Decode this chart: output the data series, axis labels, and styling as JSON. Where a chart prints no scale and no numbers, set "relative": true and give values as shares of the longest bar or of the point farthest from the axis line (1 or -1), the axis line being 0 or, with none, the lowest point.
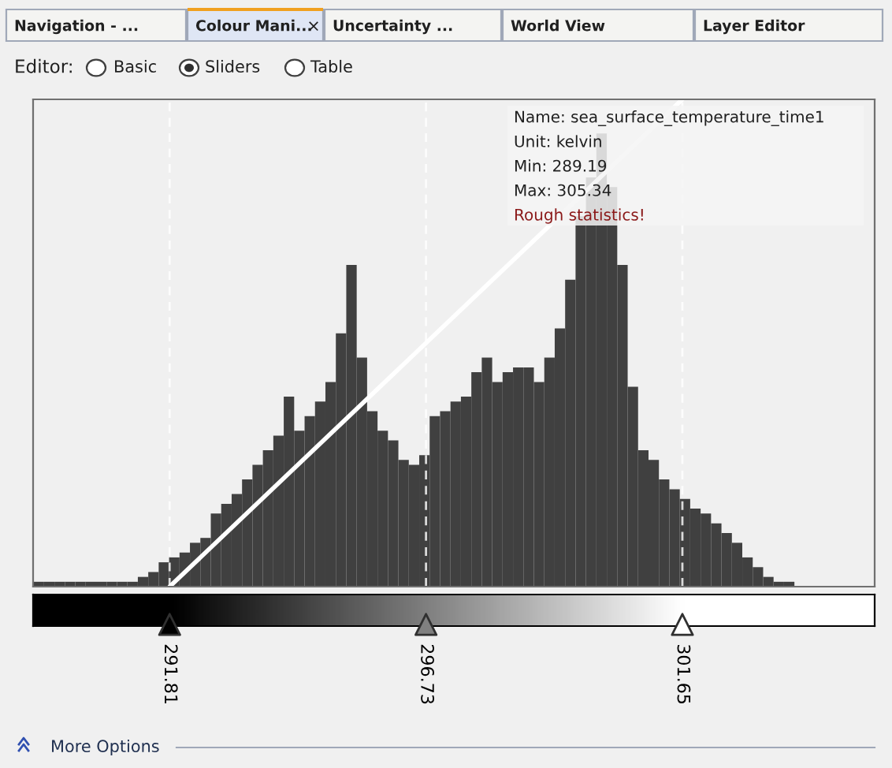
{
  "chart_data": {
    "type": "histogram",
    "relative": true,
    "bins": [
      289.2,
      289.4,
      289.6,
      289.8,
      290.0,
      290.2,
      290.4,
      290.6,
      290.8,
      291.0,
      291.2,
      291.4,
      291.6,
      291.8,
      292.0,
      292.2,
      292.4,
      292.6,
      292.8,
      293.0,
      293.2,
      293.4,
      293.6,
      293.8,
      294.0,
      294.2,
      294.4,
      294.6,
      294.8,
      295.0,
      295.2,
      295.4,
      295.6,
      295.8,
      296.0,
      296.2,
      296.4,
      296.6,
      296.8,
      297.0,
      297.2,
      297.4,
      297.6,
      297.8,
      298.0,
      298.2,
      298.4,
      298.6,
      298.8,
      299.0,
      299.2,
      299.4,
      299.6,
      299.8,
      300.0,
      300.2,
      300.4,
      300.6,
      300.8,
      301.0,
      301.2,
      301.4,
      301.6,
      301.8,
      302.0,
      302.2,
      302.4,
      302.6,
      302.8,
      303.0,
      303.2,
      303.4,
      303.6,
      303.8,
      304.0,
      304.2,
      304.4,
      304.6,
      304.8,
      305.0,
      305.2
    ],
    "series": [
      {
        "type": "histogram",
        "color": "#404040",
        "values": [
          0.01,
          0.01,
          0.01,
          0.01,
          0.01,
          0.01,
          0.01,
          0.01,
          0.01,
          0.01,
          0.02,
          0.03,
          0.05,
          0.06,
          0.07,
          0.09,
          0.1,
          0.15,
          0.17,
          0.19,
          0.22,
          0.25,
          0.28,
          0.31,
          0.39,
          0.32,
          0.35,
          0.38,
          0.42,
          0.52,
          0.66,
          0.47,
          0.36,
          0.32,
          0.3,
          0.26,
          0.25,
          0.27,
          0.35,
          0.36,
          0.38,
          0.39,
          0.44,
          0.47,
          0.42,
          0.44,
          0.45,
          0.45,
          0.42,
          0.47,
          0.53,
          0.63,
          0.76,
          0.84,
          0.93,
          0.82,
          0.66,
          0.41,
          0.28,
          0.26,
          0.22,
          0.2,
          0.18,
          0.16,
          0.15,
          0.13,
          0.11,
          0.09,
          0.06,
          0.04,
          0.02,
          0.01,
          0.01,
          0,
          0,
          0,
          0,
          0,
          0,
          0
        ]
      },
      {
        "type": "line",
        "color": "#ffffff",
        "x": [
          291.81,
          301.65
        ],
        "values": [
          0,
          1
        ]
      }
    ],
    "xlim": [
      289.19,
      305.34
    ],
    "xticks": [
      291.81,
      296.73,
      301.65
    ],
    "ref_lines": [
      {
        "axis": "x",
        "value": 291.81,
        "color": "#ffffff",
        "line_style": "dashed"
      },
      {
        "axis": "x",
        "value": 296.73,
        "color": "#ffffff",
        "line_style": "dashed"
      },
      {
        "axis": "x",
        "value": 301.65,
        "color": "#ffffff",
        "line_style": "dashed"
      }
    ],
    "annotations": [
      "Navigation - ...",
      "Colour Mani...",
      "×",
      "Uncertainty ...",
      "World View",
      "Layer Editor",
      "Editor:",
      "Basic",
      "Sliders",
      "Table",
      "Name: sea_surface_temperature_time1",
      "Unit: kelvin",
      "Min: 289.19",
      "Max: 305.34",
      "Rough statistics!",
      "More Options"
    ]
  }
}
